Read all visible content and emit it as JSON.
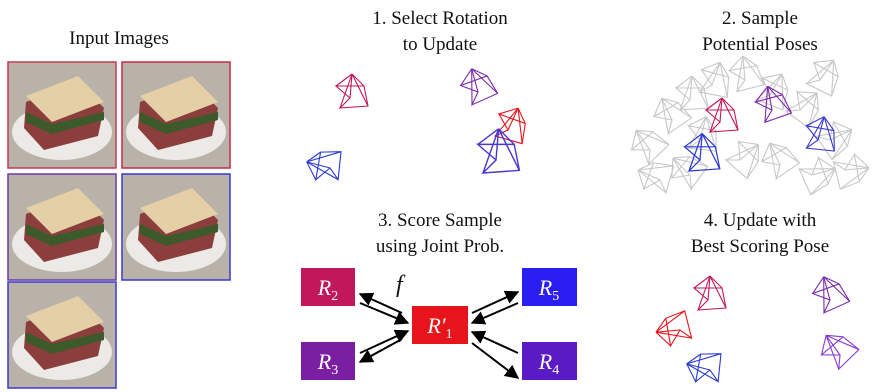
{
  "panels": {
    "input": {
      "title": "Input Images"
    },
    "step1": {
      "title": [
        "1. Select Rotation",
        "to Update"
      ]
    },
    "step2": {
      "title": [
        "2. Sample",
        "Potential Poses"
      ]
    },
    "step3": {
      "title": [
        "3. Score Sample",
        "using Joint Prob."
      ]
    },
    "step4": {
      "title": [
        "4. Update with",
        "Best Scoring Pose"
      ]
    }
  },
  "graph": {
    "nodes": [
      {
        "symbol": "R",
        "subscript": "2"
      },
      {
        "symbol": "R",
        "subscript": "3"
      },
      {
        "symbol": "R′",
        "subscript": "1"
      },
      {
        "symbol": "R",
        "subscript": "5"
      },
      {
        "symbol": "R",
        "subscript": "4"
      }
    ],
    "edge_label": "f"
  }
}
